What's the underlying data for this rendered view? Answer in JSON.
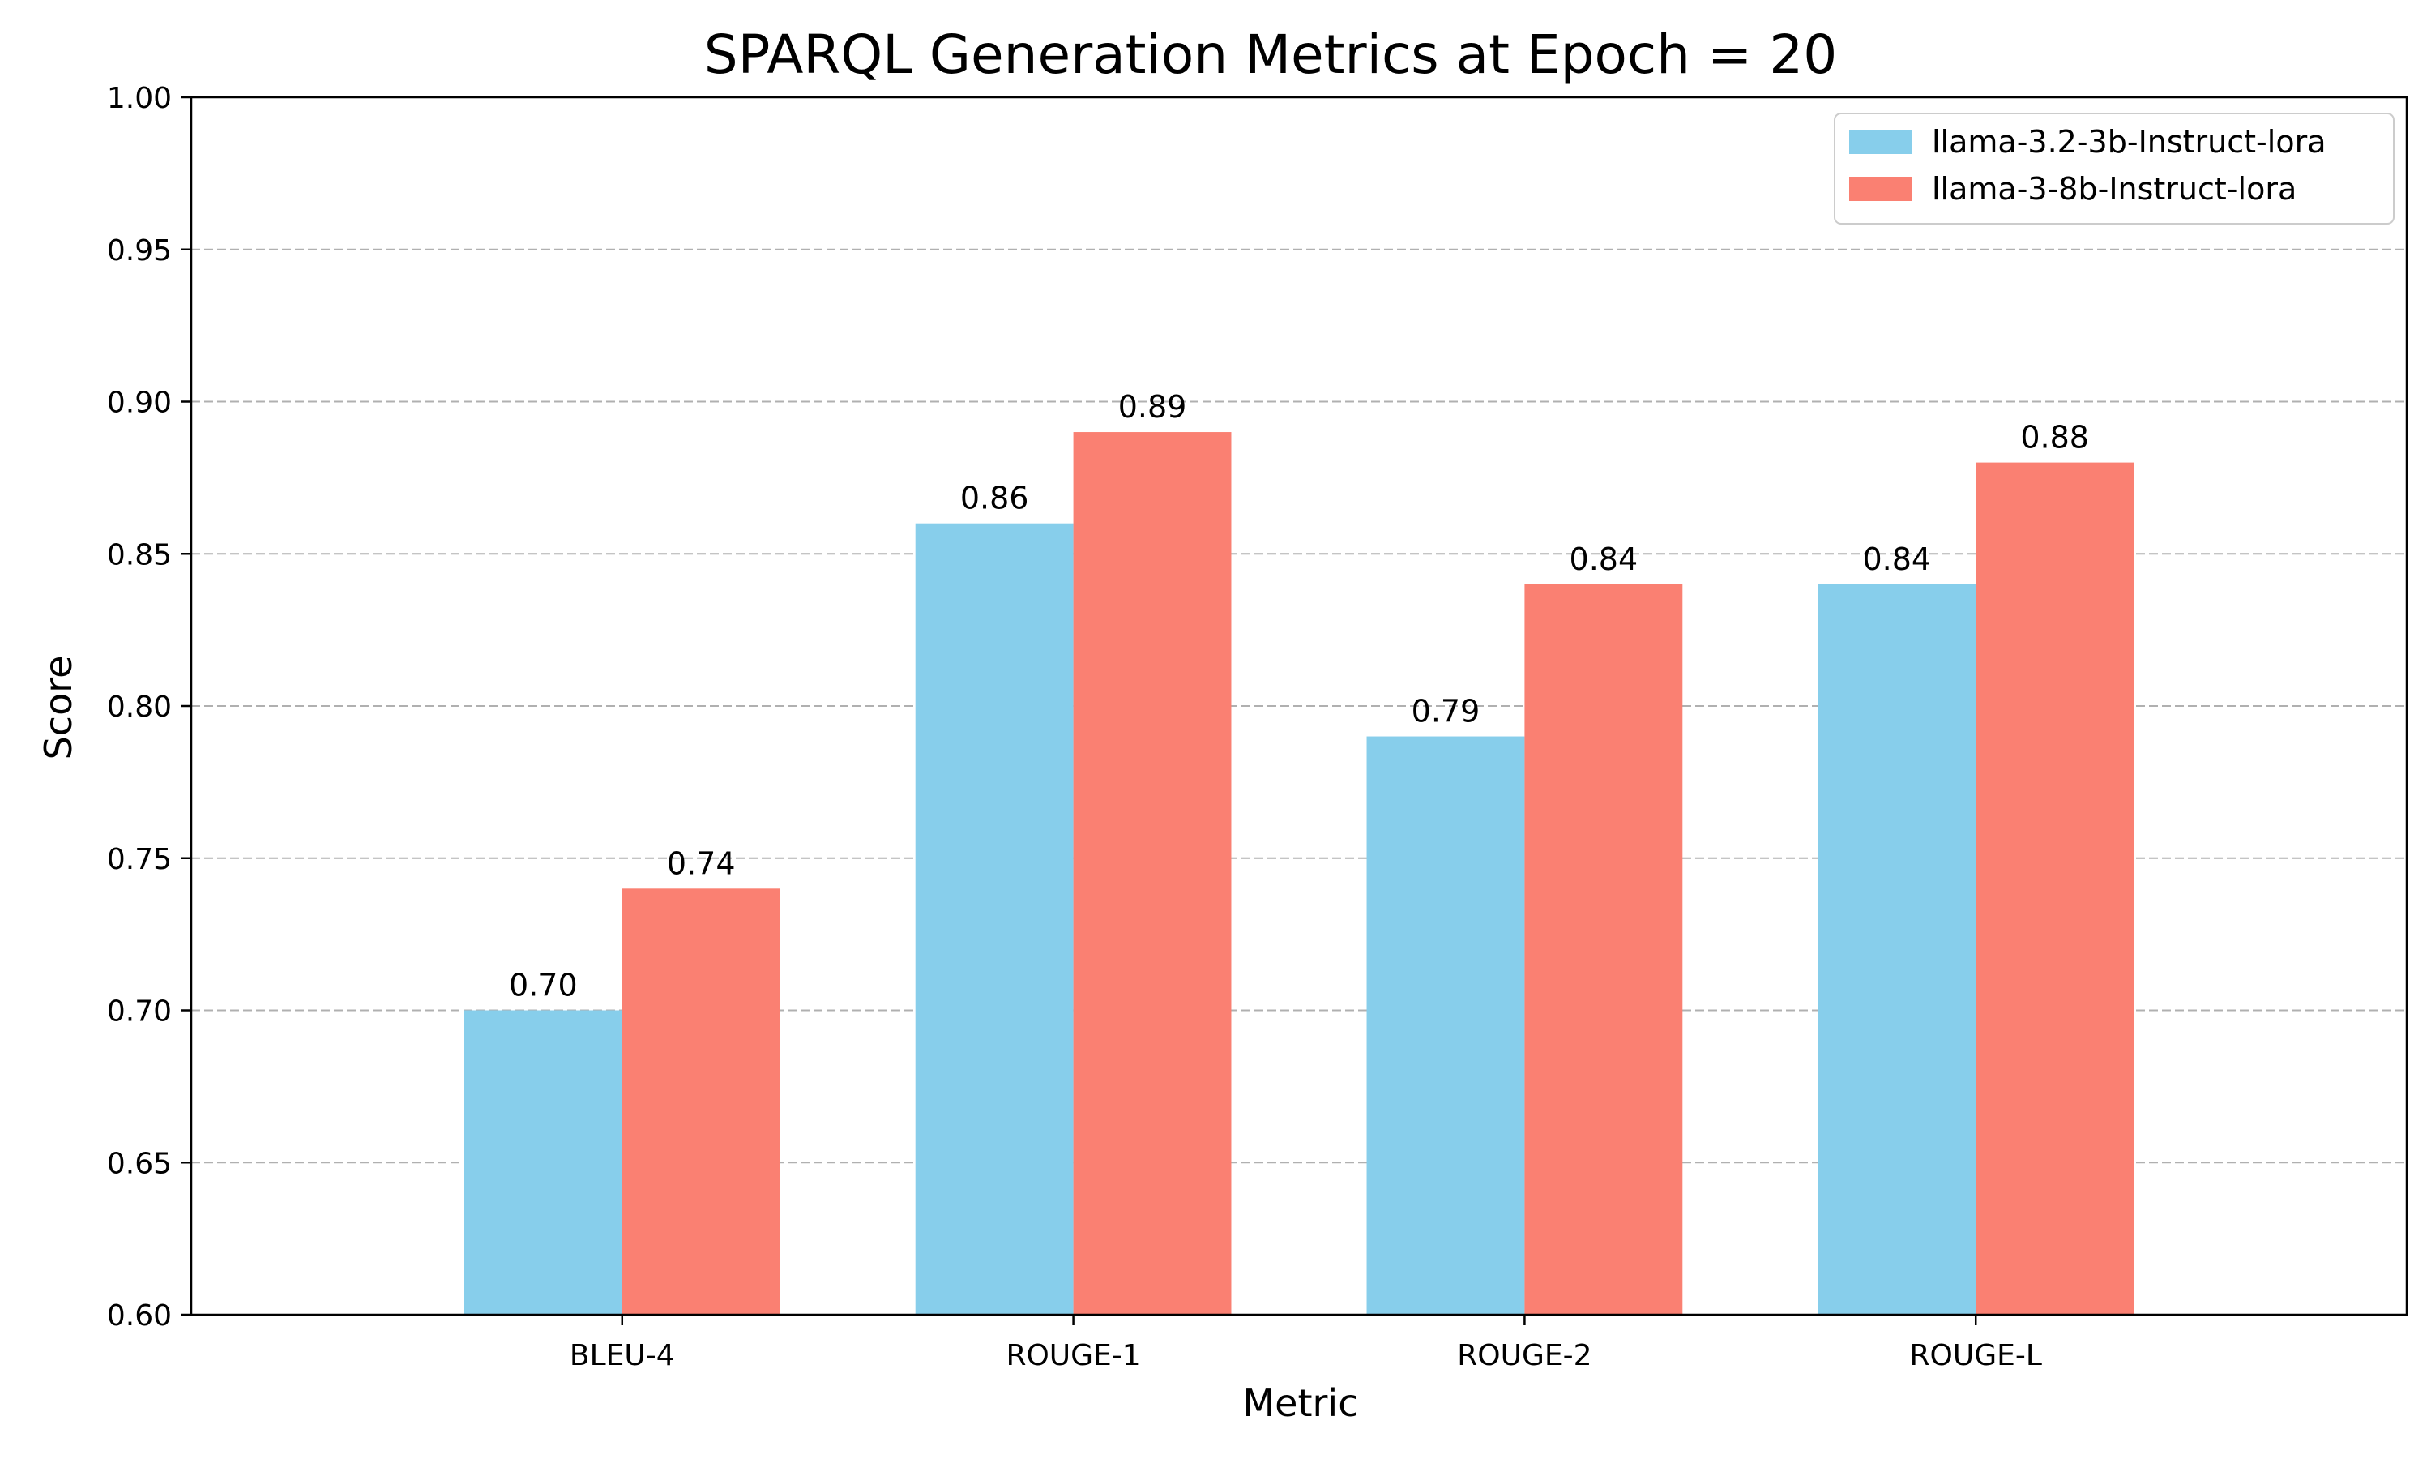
{
  "chart_data": {
    "type": "bar",
    "title": "SPARQL Generation Metrics at Epoch = 20",
    "xlabel": "Metric",
    "ylabel": "Score",
    "categories": [
      "BLEU-4",
      "ROUGE-1",
      "ROUGE-2",
      "ROUGE-L"
    ],
    "ylim": [
      0.6,
      1.0
    ],
    "yticks": [
      "0.60",
      "0.65",
      "0.70",
      "0.75",
      "0.80",
      "0.85",
      "0.90",
      "0.95",
      "1.00"
    ],
    "grid": "y-dashed",
    "legend_position": "top-right",
    "series": [
      {
        "name": "llama-3.2-3b-Instruct-lora",
        "color": "#87CEEB",
        "values": [
          0.7,
          0.86,
          0.79,
          0.84
        ],
        "labels": [
          "0.70",
          "0.86",
          "0.79",
          "0.84"
        ]
      },
      {
        "name": "llama-3-8b-Instruct-lora",
        "color": "#FA8072",
        "values": [
          0.74,
          0.89,
          0.84,
          0.88
        ],
        "labels": [
          "0.74",
          "0.89",
          "0.84",
          "0.88"
        ]
      }
    ]
  }
}
